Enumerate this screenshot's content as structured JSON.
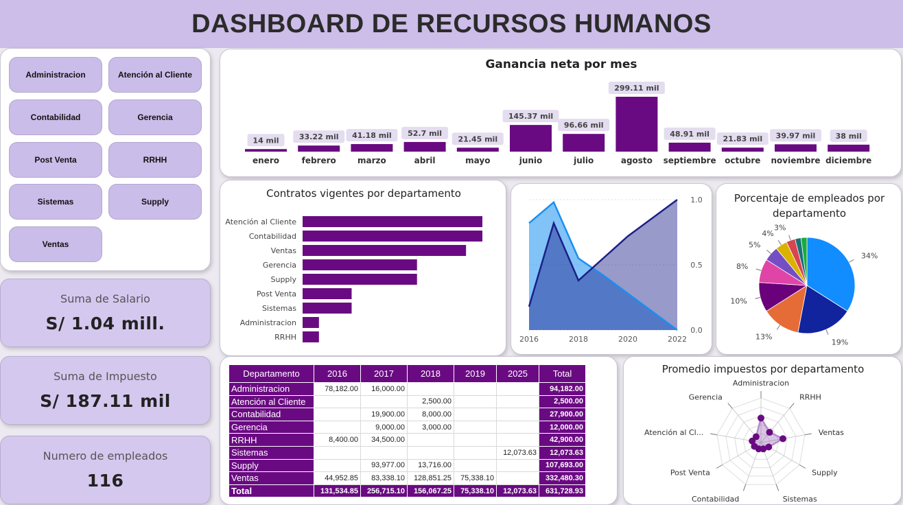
{
  "title": "DASHBOARD DE RECURSOS HUMANOS",
  "slicer": {
    "items": [
      "Administracion",
      "Atención al Cliente",
      "Contabilidad",
      "Gerencia",
      "Post Venta",
      "RRHH",
      "Sistemas",
      "Supply",
      "Ventas"
    ]
  },
  "kpis": [
    {
      "label": "Suma de Salario",
      "value": "S/ 1.04 mill."
    },
    {
      "label": "Suma de Impuesto",
      "value": "S/ 187.11 mil"
    },
    {
      "label": "Numero de empleados",
      "value": "116"
    }
  ],
  "colors": {
    "accent": "#6a0a82",
    "header_bg": "#cdbde9",
    "button_bg": "#cbbde9"
  },
  "chart_data": [
    {
      "type": "bar",
      "title": "Ganancia neta por mes",
      "categories": [
        "enero",
        "febrero",
        "marzo",
        "abril",
        "mayo",
        "junio",
        "julio",
        "agosto",
        "septiembre",
        "octubre",
        "noviembre",
        "diciembre"
      ],
      "values": [
        14,
        33.22,
        41.18,
        52.7,
        21.45,
        145.37,
        96.66,
        299.11,
        48.91,
        21.83,
        39.97,
        38
      ],
      "labels": [
        "14 mil",
        "33.22 mil",
        "41.18 mil",
        "52.7 mil",
        "21.45 mil",
        "145.37 mil",
        "96.66 mil",
        "299.11 mil",
        "48.91 mil",
        "21.83 mil",
        "39.97 mil",
        "38 mil"
      ]
    },
    {
      "type": "bar",
      "orientation": "horizontal",
      "title": "Contratos vigentes por departamento",
      "categories": [
        "Atención al Cliente",
        "Contabilidad",
        "Ventas",
        "Gerencia",
        "Supply",
        "Post Venta",
        "Sistemas",
        "Administracion",
        "RRHH"
      ],
      "values": [
        22,
        22,
        20,
        14,
        14,
        6,
        6,
        2,
        2
      ]
    },
    {
      "type": "area",
      "x": [
        2016,
        2017,
        2018,
        2019,
        2020,
        2021,
        2022
      ],
      "xticks": [
        "2016",
        "2018",
        "2020",
        "2022"
      ],
      "yticks": [
        "1.0",
        "0.5",
        "0.0"
      ],
      "ylim": [
        0,
        1
      ],
      "series": [
        {
          "values": [
            0.82,
            0.98,
            0.55,
            0.42,
            0.28,
            0.14,
            0.0
          ],
          "color": "#1a8ff0"
        },
        {
          "values": [
            0.18,
            0.82,
            0.38,
            0.55,
            0.72,
            0.86,
            1.0
          ],
          "color": "#1a1f8a"
        }
      ]
    },
    {
      "type": "pie",
      "title": "Porcentaje de empleados por departamento",
      "values": [
        34,
        19,
        13,
        10,
        8,
        5,
        4,
        3,
        2,
        2
      ],
      "labels": [
        "34%",
        "19%",
        "13%",
        "10%",
        "8%",
        "5%",
        "4%",
        "3%",
        "",
        ""
      ],
      "colors": [
        "#118dff",
        "#12239e",
        "#e66c37",
        "#6b007b",
        "#e044a7",
        "#744ec2",
        "#d9b300",
        "#d64550",
        "#197278",
        "#1aab40"
      ]
    },
    {
      "type": "table",
      "columns": [
        "Departamento",
        "2016",
        "2017",
        "2018",
        "2019",
        "2025",
        "Total"
      ],
      "rows": [
        [
          "Administracion",
          "78,182.00",
          "16,000.00",
          "",
          "",
          "",
          "94,182.00"
        ],
        [
          "Atención al Cliente",
          "",
          "",
          "2,500.00",
          "",
          "",
          "2,500.00"
        ],
        [
          "Contabilidad",
          "",
          "19,900.00",
          "8,000.00",
          "",
          "",
          "27,900.00"
        ],
        [
          "Gerencia",
          "",
          "9,000.00",
          "3,000.00",
          "",
          "",
          "12,000.00"
        ],
        [
          "RRHH",
          "8,400.00",
          "34,500.00",
          "",
          "",
          "",
          "42,900.00"
        ],
        [
          "Sistemas",
          "",
          "",
          "",
          "",
          "12,073.63",
          "12,073.63"
        ],
        [
          "Supply",
          "",
          "93,977.00",
          "13,716.00",
          "",
          "",
          "107,693.00"
        ],
        [
          "Ventas",
          "44,952.85",
          "83,338.10",
          "128,851.25",
          "75,338.10",
          "",
          "332,480.30"
        ]
      ],
      "total": [
        "Total",
        "131,534.85",
        "256,715.10",
        "156,067.25",
        "75,338.10",
        "12,073.63",
        "631,728.93"
      ]
    },
    {
      "type": "radar",
      "title": "Promedio impuestos por departamento",
      "categories": [
        "Administracion",
        "RRHH",
        "Ventas",
        "Supply",
        "Sistemas",
        "Contabilidad",
        "Post Venta",
        "Atención al Cl...",
        "Gerencia"
      ],
      "values": [
        0.55,
        0.3,
        0.5,
        0.2,
        0.15,
        0.15,
        0.17,
        0.2,
        0.17
      ]
    }
  ]
}
